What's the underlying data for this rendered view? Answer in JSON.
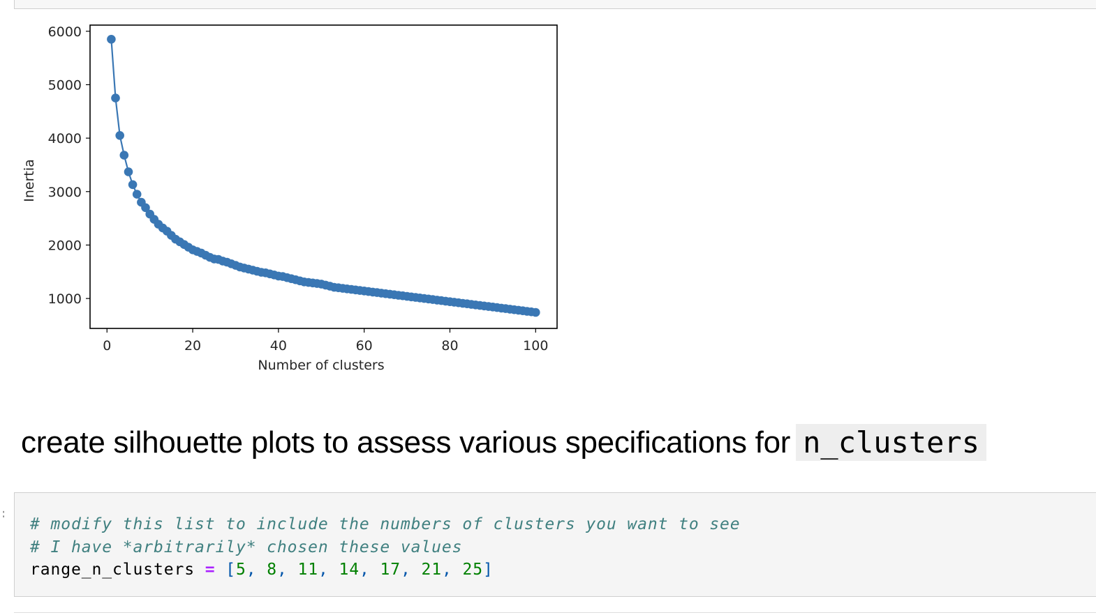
{
  "notebook": {
    "heading": {
      "text": "create silhouette plots to assess various specifications for",
      "code": "n_clusters"
    },
    "code_cell": {
      "prompt": ":",
      "comment_1": "# modify this list to include the numbers of clusters you want to see",
      "comment_2": "# I have *arbitrarily* chosen these values",
      "var_name": "range_n_clusters ",
      "operator": "=",
      "open_bracket": "[",
      "close_bracket": "]",
      "values": [
        "5",
        "8",
        "11",
        "14",
        "17",
        "21",
        "25"
      ]
    }
  },
  "colors": {
    "series": "#3a77b4",
    "cell_background": "#f5f5f5",
    "comment": "#408080",
    "number": "#008000",
    "operator": "#aa22ff"
  },
  "chart_data": {
    "type": "line",
    "marker": "circle",
    "xlabel": "Number of clusters",
    "ylabel": "Inertia",
    "xlim": [
      -3.95,
      105
    ],
    "ylim": [
      440,
      6115
    ],
    "xticks": [
      0,
      20,
      40,
      60,
      80,
      100
    ],
    "yticks": [
      1000,
      2000,
      3000,
      4000,
      5000,
      6000
    ],
    "grid": false,
    "x": [
      1,
      2,
      3,
      4,
      5,
      6,
      7,
      8,
      9,
      10,
      11,
      12,
      13,
      14,
      15,
      16,
      17,
      18,
      19,
      20,
      21,
      22,
      23,
      24,
      25,
      26,
      27,
      28,
      29,
      30,
      31,
      32,
      33,
      34,
      35,
      36,
      37,
      38,
      39,
      40,
      41,
      42,
      43,
      44,
      45,
      46,
      47,
      48,
      49,
      50,
      51,
      52,
      53,
      54,
      55,
      56,
      57,
      58,
      59,
      60,
      61,
      62,
      63,
      64,
      65,
      66,
      67,
      68,
      69,
      70,
      71,
      72,
      73,
      74,
      75,
      76,
      77,
      78,
      79,
      80,
      81,
      82,
      83,
      84,
      85,
      86,
      87,
      88,
      89,
      90,
      91,
      92,
      93,
      94,
      95,
      96,
      97,
      98,
      99,
      100
    ],
    "y": [
      5850,
      4750,
      4050,
      3680,
      3370,
      3130,
      2950,
      2800,
      2700,
      2580,
      2480,
      2390,
      2320,
      2260,
      2180,
      2110,
      2060,
      2010,
      1960,
      1910,
      1880,
      1850,
      1810,
      1770,
      1740,
      1730,
      1700,
      1680,
      1650,
      1620,
      1590,
      1570,
      1550,
      1530,
      1510,
      1490,
      1480,
      1460,
      1440,
      1420,
      1410,
      1390,
      1370,
      1350,
      1330,
      1310,
      1300,
      1290,
      1280,
      1270,
      1250,
      1230,
      1210,
      1200,
      1190,
      1180,
      1170,
      1160,
      1150,
      1140,
      1130,
      1120,
      1110,
      1100,
      1090,
      1080,
      1070,
      1060,
      1050,
      1040,
      1030,
      1020,
      1010,
      1000,
      990,
      980,
      970,
      960,
      950,
      940,
      930,
      920,
      910,
      900,
      890,
      880,
      870,
      860,
      850,
      840,
      830,
      820,
      810,
      800,
      790,
      780,
      770,
      760,
      750,
      740
    ]
  }
}
